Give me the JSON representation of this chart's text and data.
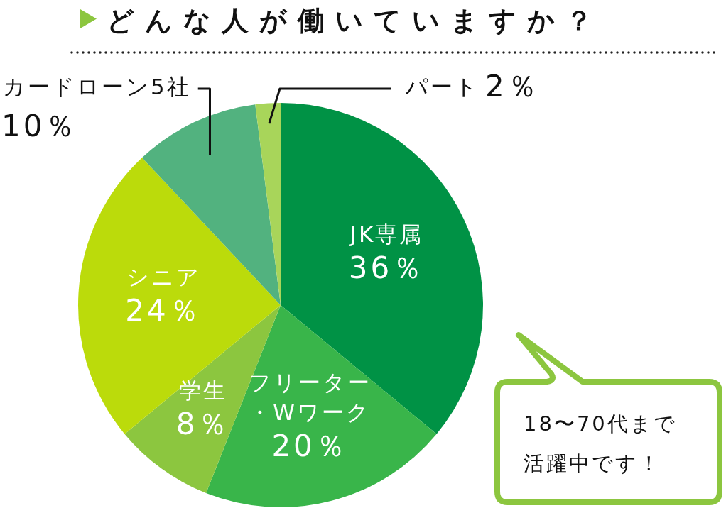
{
  "chart_data": {
    "type": "pie",
    "title": "どんな人が働いていますか？",
    "categories": [
      "JK専属",
      "フリーター・Wワーク",
      "学生",
      "シニア",
      "カードローン5社",
      "パート"
    ],
    "values": [
      36,
      20,
      8,
      24,
      10,
      2
    ],
    "colors": [
      "#009245",
      "#39b54a",
      "#8cc63f",
      "#bbdb0b",
      "#52b27f",
      "#a8d55a"
    ],
    "value_labels": [
      "36％",
      "20％",
      "8％",
      "24％",
      "10％",
      "2％"
    ],
    "annotations": [
      "18〜70代まで活躍中です！"
    ],
    "legend": false
  }
}
